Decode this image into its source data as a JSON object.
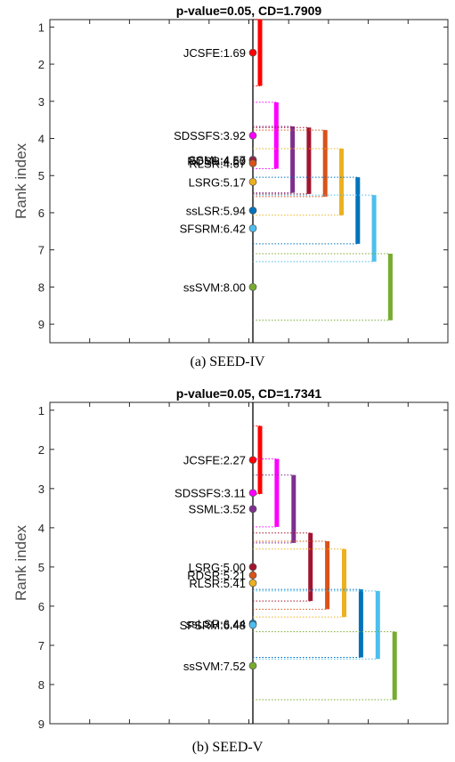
{
  "figure": {
    "caption_a": "(a)  SEED-IV",
    "caption_b": "(b)  SEED-V"
  },
  "chart_data": [
    {
      "type": "critical-difference",
      "title": "p-value=0.05, CD=1.7909",
      "ylabel": "Rank index",
      "ylim": [
        0.8,
        9.5
      ],
      "yticks": [
        "1",
        "2",
        "3",
        "4",
        "5",
        "6",
        "7",
        "8",
        "9"
      ],
      "cd": 1.7909,
      "methods": [
        {
          "label": "JCSFE:1.69",
          "rank": 1.69,
          "color": "#ff0000"
        },
        {
          "label": "SDSSFS:3.92",
          "rank": 3.92,
          "color": "#ff00ff"
        },
        {
          "label": "SSML:4.57",
          "rank": 4.57,
          "color": "#7e2f8e"
        },
        {
          "label": "RDSR:4.60",
          "rank": 4.6,
          "color": "#a2142f"
        },
        {
          "label": "RLSR:4.67",
          "rank": 4.67,
          "color": "#d95319"
        },
        {
          "label": "LSRG:5.17",
          "rank": 5.17,
          "color": "#edb120"
        },
        {
          "label": "ssLSR:5.94",
          "rank": 5.94,
          "color": "#0072bd"
        },
        {
          "label": "SFSRM:6.42",
          "rank": 6.42,
          "color": "#4dbeee"
        },
        {
          "label": "ssSVM:8.00",
          "rank": 8.0,
          "color": "#77ac30"
        }
      ]
    },
    {
      "type": "critical-difference",
      "title": "p-value=0.05, CD=1.7341",
      "ylabel": "Rank index",
      "ylim": [
        0.8,
        9
      ],
      "yticks": [
        "1",
        "2",
        "3",
        "4",
        "5",
        "6",
        "7",
        "8",
        "9"
      ],
      "cd": 1.7341,
      "methods": [
        {
          "label": "JCSFE:2.27",
          "rank": 2.27,
          "color": "#ff0000"
        },
        {
          "label": "SDSSFS:3.11",
          "rank": 3.11,
          "color": "#ff00ff"
        },
        {
          "label": "SSML:3.52",
          "rank": 3.52,
          "color": "#7e2f8e"
        },
        {
          "label": "LSRG:5.00",
          "rank": 5.0,
          "color": "#a2142f"
        },
        {
          "label": "RDSR:5.21",
          "rank": 5.21,
          "color": "#d95319"
        },
        {
          "label": "RLSR:5.41",
          "rank": 5.41,
          "color": "#edb120"
        },
        {
          "label": "ssLSR:6.44",
          "rank": 6.44,
          "color": "#0072bd"
        },
        {
          "label": "SFSRM:6.48",
          "rank": 6.48,
          "color": "#4dbeee"
        },
        {
          "label": "ssSVM:7.52",
          "rank": 7.52,
          "color": "#77ac30"
        }
      ]
    }
  ]
}
